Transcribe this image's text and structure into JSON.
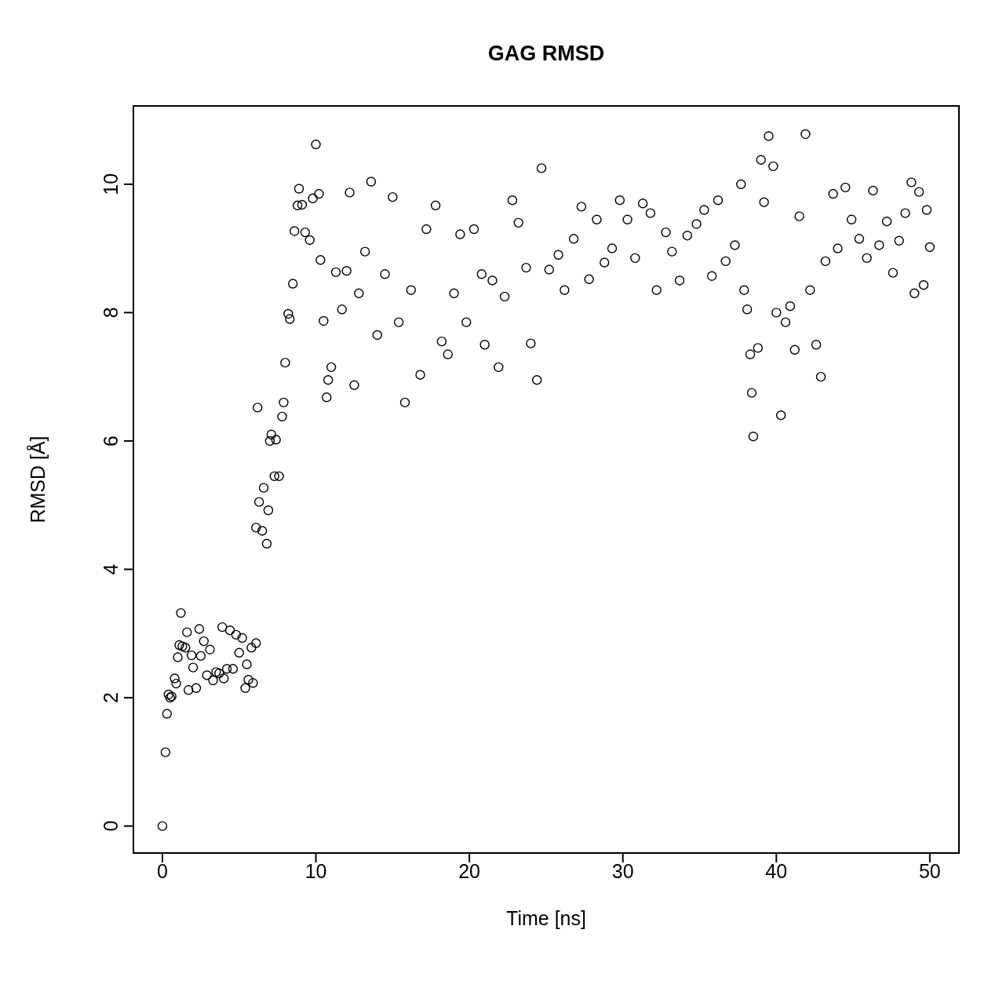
{
  "chart_data": {
    "type": "scatter",
    "title": "GAG RMSD",
    "xlabel": "Time [ns]",
    "ylabel": "RMSD [Å]",
    "marker": "circle",
    "grid": false,
    "legend": false,
    "xlim": [
      -1.89,
      51.9
    ],
    "ylim": [
      -0.42,
      11.22
    ],
    "xticks": [
      0,
      10,
      20,
      30,
      40,
      50
    ],
    "yticks": [
      0,
      2,
      4,
      6,
      8,
      10
    ],
    "series": [
      {
        "color": "#000000",
        "x": [
          0,
          0.2,
          0.3,
          0.4,
          0.5,
          0.6,
          0.8,
          0.9,
          1.0,
          1.1,
          1.2,
          1.3,
          1.5,
          1.6,
          1.7,
          1.9,
          2.0,
          2.2,
          2.4,
          2.5,
          2.7,
          2.9,
          3.1,
          3.3,
          3.5,
          3.7,
          3.9,
          4.0,
          4.2,
          4.4,
          4.6,
          4.8,
          5.0,
          5.2,
          5.4,
          5.5,
          5.6,
          5.8,
          5.9,
          6.1,
          6.1,
          6.2,
          6.3,
          6.5,
          6.6,
          6.8,
          6.9,
          7.0,
          7.1,
          7.3,
          7.4,
          7.6,
          7.8,
          7.9,
          8.0,
          8.2,
          8.3,
          8.5,
          8.6,
          8.8,
          8.9,
          9.1,
          9.3,
          9.6,
          9.8,
          10.0,
          10.2,
          10.3,
          10.5,
          10.7,
          10.8,
          11.0,
          11.3,
          11.7,
          12.0,
          12.2,
          12.5,
          12.8,
          13.2,
          13.6,
          14.0,
          14.5,
          15.0,
          15.4,
          15.8,
          16.2,
          16.8,
          17.2,
          17.8,
          18.2,
          18.6,
          19.0,
          19.4,
          19.8,
          20.3,
          20.8,
          21.0,
          21.5,
          21.9,
          22.3,
          22.8,
          23.2,
          23.7,
          24.0,
          24.4,
          24.7,
          25.2,
          25.8,
          26.2,
          26.8,
          27.3,
          27.8,
          28.3,
          28.8,
          29.3,
          29.8,
          30.3,
          30.8,
          31.3,
          31.8,
          32.2,
          32.8,
          33.2,
          33.7,
          34.2,
          34.8,
          35.3,
          35.8,
          36.2,
          36.7,
          37.3,
          37.7,
          37.9,
          38.1,
          38.3,
          38.4,
          38.5,
          38.8,
          39.0,
          39.2,
          39.5,
          39.8,
          40.0,
          40.3,
          40.6,
          40.9,
          41.2,
          41.5,
          41.9,
          42.2,
          42.6,
          42.9,
          43.2,
          43.7,
          44.0,
          44.5,
          44.9,
          45.4,
          45.9,
          46.3,
          46.7,
          47.2,
          47.6,
          48.0,
          48.4,
          48.8,
          49.0,
          49.3,
          49.6,
          49.8,
          50.0
        ],
        "values": [
          0,
          1.15,
          1.75,
          2.05,
          2.0,
          2.02,
          2.3,
          2.22,
          2.63,
          2.82,
          3.32,
          2.8,
          2.78,
          3.02,
          2.12,
          2.66,
          2.47,
          2.15,
          3.07,
          2.65,
          2.88,
          2.35,
          2.75,
          2.27,
          2.4,
          2.38,
          3.1,
          2.3,
          2.45,
          3.05,
          2.45,
          2.98,
          2.7,
          2.93,
          2.15,
          2.52,
          2.28,
          2.78,
          2.23,
          2.85,
          4.65,
          6.52,
          5.05,
          4.6,
          5.27,
          4.4,
          4.92,
          6.0,
          6.1,
          5.45,
          6.02,
          5.45,
          6.38,
          6.6,
          7.22,
          7.98,
          7.9,
          8.45,
          9.27,
          9.67,
          9.93,
          9.68,
          9.25,
          9.13,
          9.78,
          10.62,
          9.85,
          8.82,
          7.87,
          6.68,
          6.95,
          7.15,
          8.63,
          8.05,
          8.65,
          9.87,
          6.87,
          8.3,
          8.95,
          10.04,
          7.65,
          8.6,
          9.8,
          7.85,
          6.6,
          8.35,
          7.03,
          9.3,
          9.67,
          7.55,
          7.35,
          8.3,
          9.22,
          7.85,
          9.3,
          8.6,
          7.5,
          8.5,
          7.15,
          8.25,
          9.75,
          9.4,
          8.7,
          7.52,
          6.95,
          10.25,
          8.67,
          8.9,
          8.35,
          9.15,
          9.65,
          8.52,
          9.45,
          8.78,
          9.0,
          9.75,
          9.45,
          8.85,
          9.7,
          9.55,
          8.35,
          9.25,
          8.95,
          8.5,
          9.2,
          9.38,
          9.6,
          8.57,
          9.75,
          8.8,
          9.05,
          10.0,
          8.35,
          8.05,
          7.35,
          6.75,
          6.07,
          7.45,
          10.38,
          9.72,
          10.75,
          10.28,
          8.0,
          6.4,
          7.85,
          8.1,
          7.42,
          9.5,
          10.78,
          8.35,
          7.5,
          7.0,
          8.8,
          9.85,
          9.0,
          9.95,
          9.45,
          9.15,
          8.85,
          9.9,
          9.05,
          9.42,
          8.62,
          9.12,
          9.55,
          10.03,
          8.3,
          9.88,
          8.43,
          9.6,
          9.02
        ]
      }
    ]
  }
}
